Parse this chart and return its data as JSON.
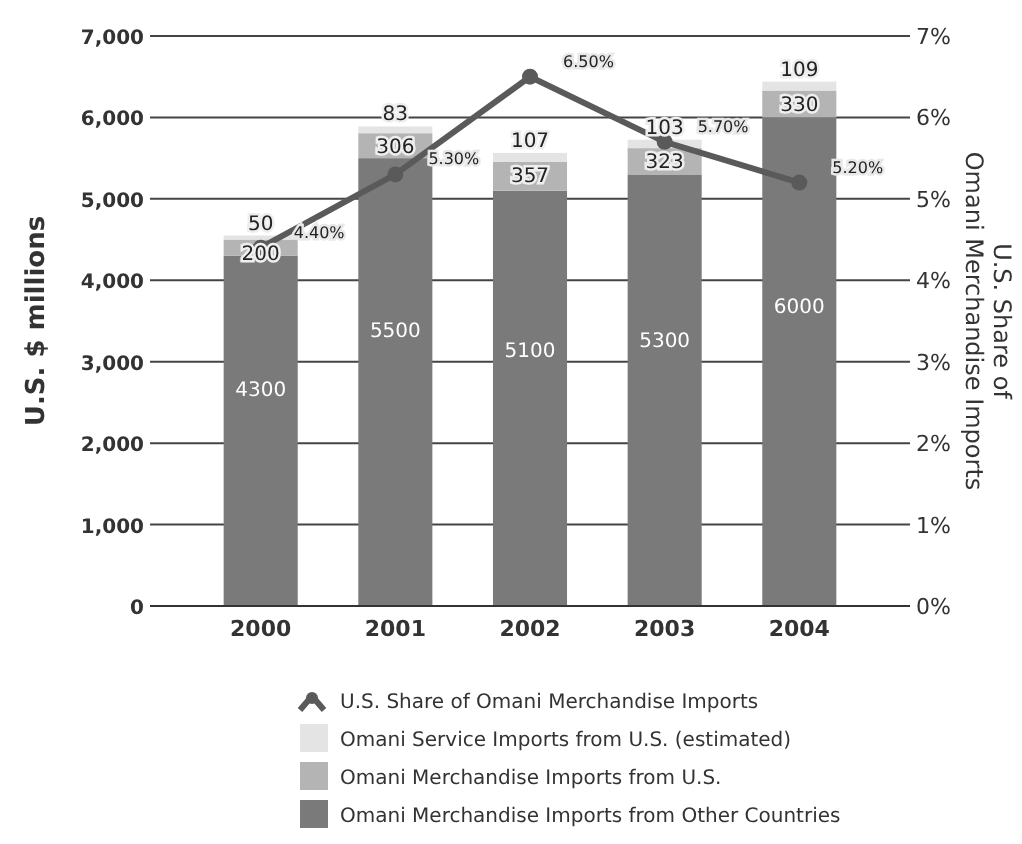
{
  "chart_data": {
    "type": "bar",
    "stacked": true,
    "categories": [
      "2000",
      "2001",
      "2002",
      "2003",
      "2004"
    ],
    "ylabel": "U.S. $ millions",
    "y2label": "U.S. Share of Omani Merchandise Imports",
    "ylim": [
      0,
      7000
    ],
    "yticks": [
      0,
      {
        "value": 1000,
        "label": "1,000"
      },
      {
        "value": 2000,
        "label": "2,000"
      },
      {
        "value": 3000,
        "label": "3,000"
      },
      {
        "value": 4000,
        "label": "4,000"
      },
      {
        "value": 5000,
        "label": "5,000"
      },
      {
        "value": 6000,
        "label": "6,000"
      },
      {
        "value": 7000,
        "label": "7,000"
      }
    ],
    "y2lim": [
      0,
      7
    ],
    "y2ticks": [
      {
        "value": 0,
        "label": "0%"
      },
      {
        "value": 1,
        "label": "1%"
      },
      {
        "value": 2,
        "label": "2%"
      },
      {
        "value": 3,
        "label": "3%"
      },
      {
        "value": 4,
        "label": "4%"
      },
      {
        "value": 5,
        "label": "5%"
      },
      {
        "value": 6,
        "label": "6%"
      },
      {
        "value": 7,
        "label": "7%"
      }
    ],
    "grid": "y",
    "legend": "bottom",
    "data_labels": true,
    "series": [
      {
        "name": "Omani Merchandise Imports from Other Countries",
        "color": "#7a7a7a",
        "values": [
          4300,
          5500,
          5100,
          5300,
          6000
        ]
      },
      {
        "name": "Omani Merchandise Imports from U.S.",
        "color": "#b4b4b4",
        "values": [
          200,
          306,
          357,
          323,
          330
        ]
      },
      {
        "name": "Omani Service Imports from U.S. (estimated)",
        "color": "#e4e4e4",
        "values": [
          50,
          83,
          107,
          103,
          109
        ]
      },
      {
        "name": "U.S. Share of Omani Merchandise Imports",
        "type": "line",
        "axis": "y2",
        "color": "#5a5a5a",
        "marker": "circle",
        "values": [
          4.4,
          5.3,
          6.5,
          5.7,
          5.2
        ],
        "value_labels": [
          "4.40%",
          "5.30%",
          "6.50%",
          "5.70%",
          "5.20%"
        ]
      }
    ]
  }
}
